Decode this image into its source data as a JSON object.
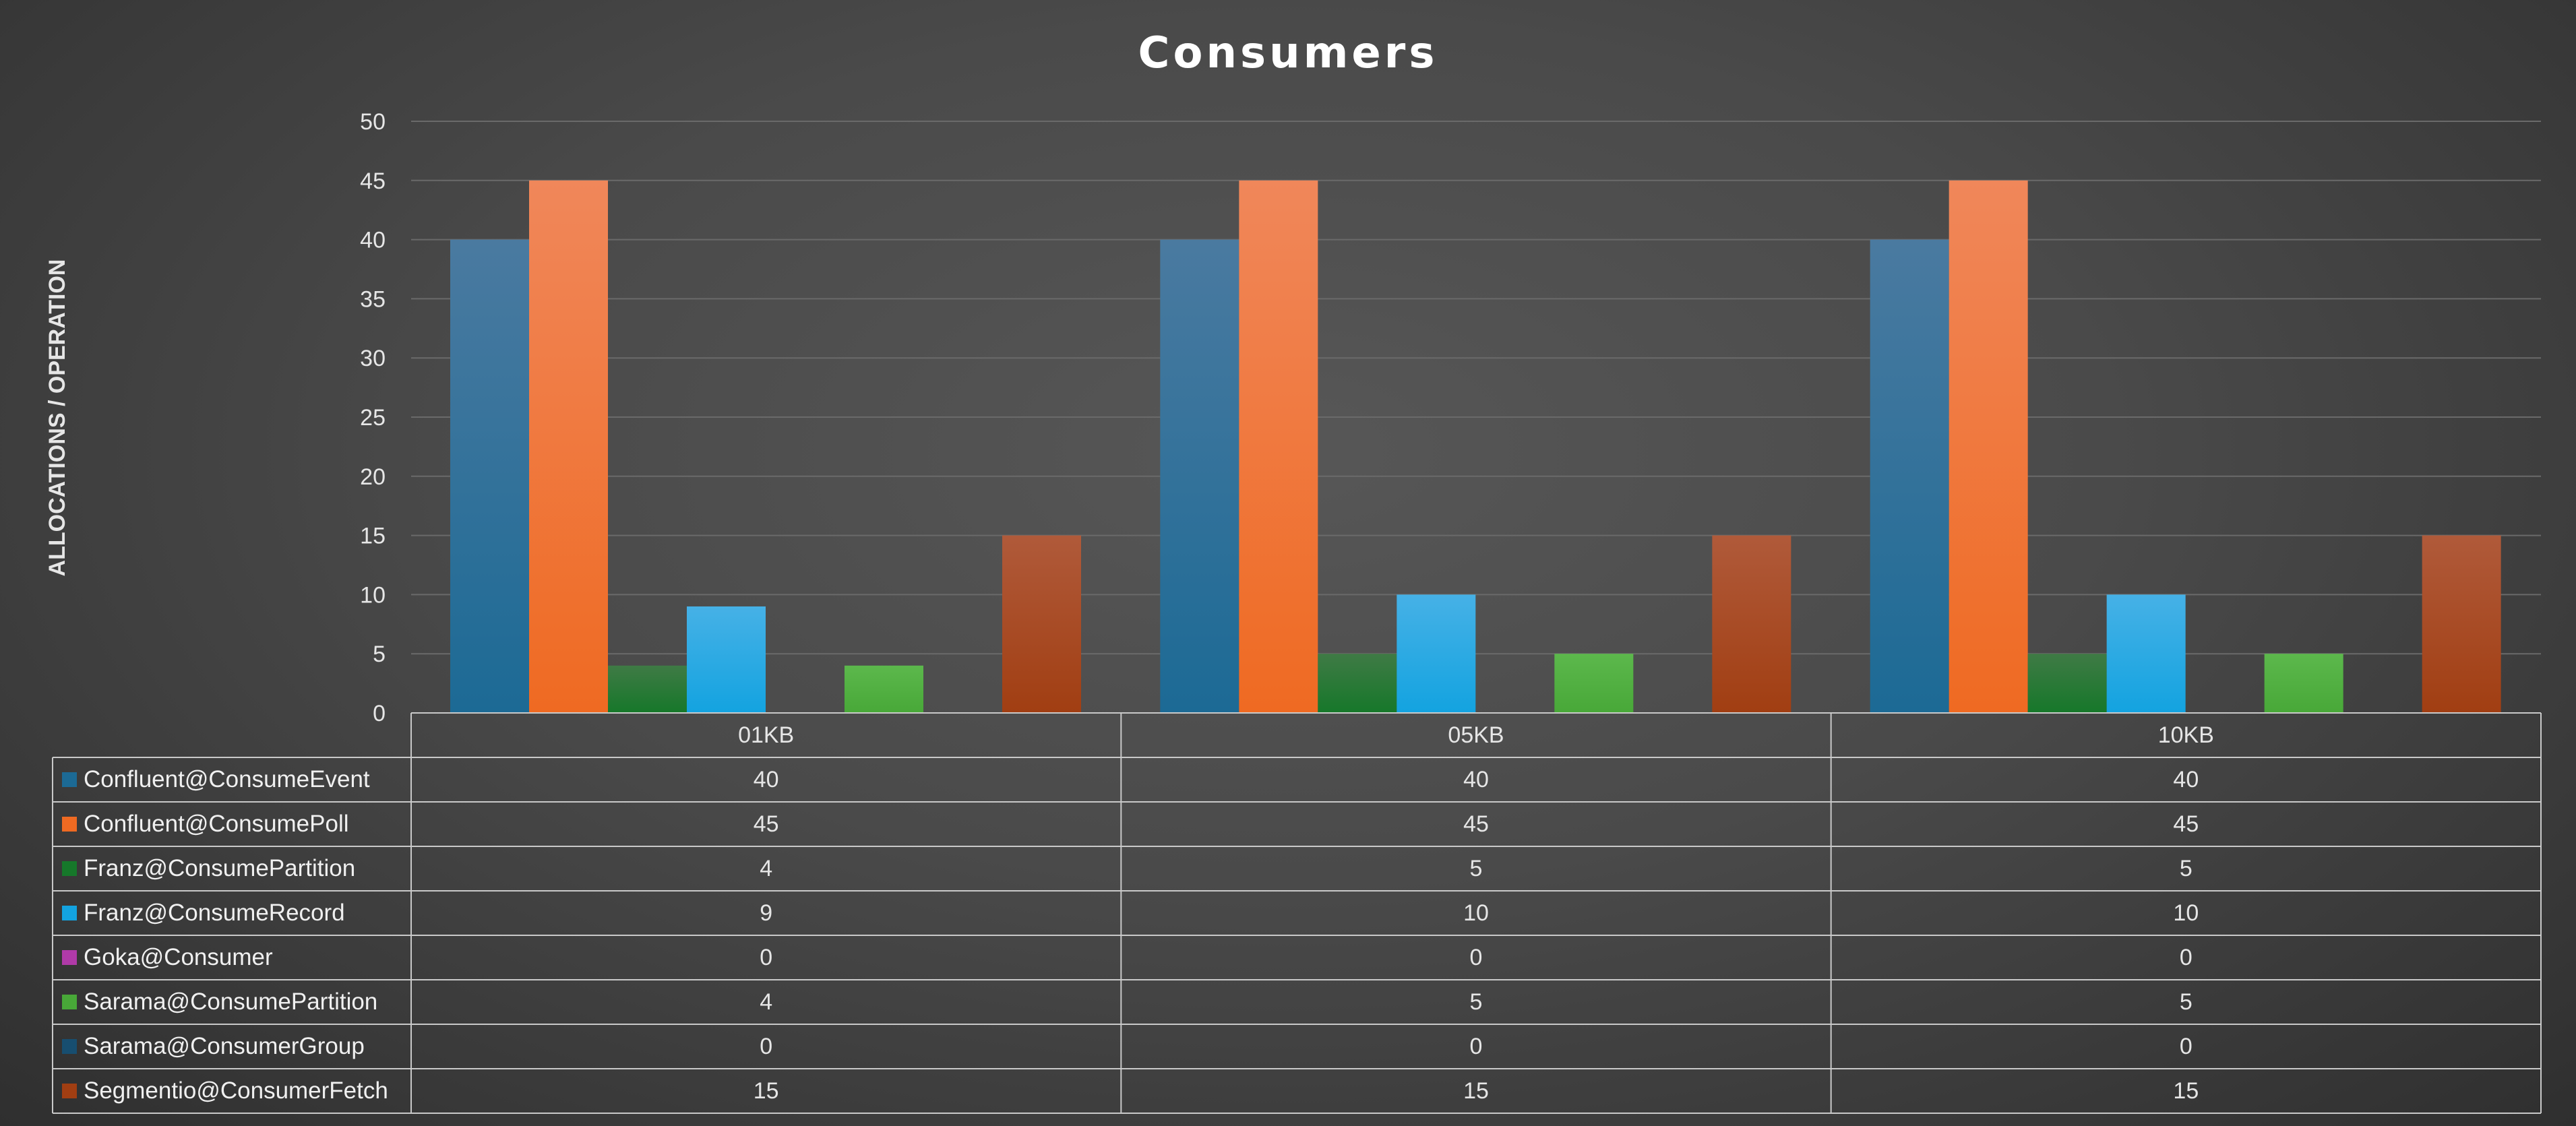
{
  "chart_data": {
    "type": "bar",
    "title": "Consumers",
    "ylabel": "ALLOCATIONS / OPERATION",
    "xlabel": "",
    "categories": [
      "01KB",
      "05KB",
      "10KB"
    ],
    "ylim": [
      0,
      50
    ],
    "yticks": [
      0,
      5,
      10,
      15,
      20,
      25,
      30,
      35,
      40,
      45,
      50
    ],
    "grid": true,
    "legend_placement": "data-table-left",
    "series": [
      {
        "name": "Confluent@ConsumeEvent",
        "values": [
          40,
          40,
          40
        ],
        "color": "#1c6a95",
        "color_top": "#4a7aa0"
      },
      {
        "name": "Confluent@ConsumePoll",
        "values": [
          45,
          45,
          45
        ],
        "color": "#ef6a22",
        "color_top": "#f0875a"
      },
      {
        "name": "Franz@ConsumePartition",
        "values": [
          4,
          5,
          5
        ],
        "color": "#16782a",
        "color_top": "#3f7a45"
      },
      {
        "name": "Franz@ConsumeRecord",
        "values": [
          9,
          10,
          10
        ],
        "color": "#13a3e0",
        "color_top": "#46b1e6"
      },
      {
        "name": "Goka@Consumer",
        "values": [
          0,
          0,
          0
        ],
        "color": "#b03aa8",
        "color_top": "#b03aa8"
      },
      {
        "name": "Sarama@ConsumePartition",
        "values": [
          4,
          5,
          5
        ],
        "color": "#48a838",
        "color_top": "#5cb84c"
      },
      {
        "name": "Sarama@ConsumerGroup",
        "values": [
          0,
          0,
          0
        ],
        "color": "#174e70",
        "color_top": "#174e70"
      },
      {
        "name": "Segmentio@ConsumerFetch",
        "values": [
          15,
          15,
          15
        ],
        "color": "#a13e12",
        "color_top": "#b05a3a"
      }
    ]
  }
}
